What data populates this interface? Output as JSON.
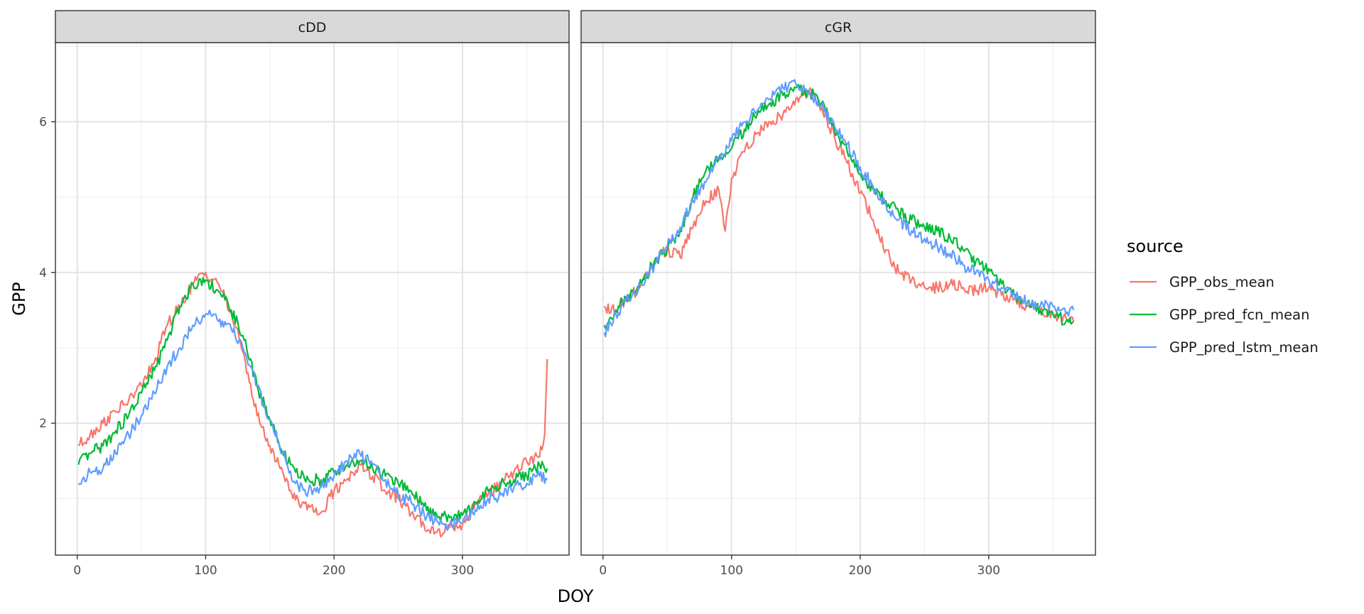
{
  "chart_data": {
    "type": "line",
    "xlabel": "DOY",
    "ylabel": "GPP",
    "x_breaks": [
      0,
      100,
      200,
      300
    ],
    "y_breaks": [
      2,
      4,
      6
    ],
    "xlim": [
      -17,
      383
    ],
    "ylim": [
      0.25,
      7.05
    ],
    "grid": true,
    "legend": {
      "title": "source",
      "position": "right",
      "entries": [
        "GPP_obs_mean",
        "GPP_pred_fcn_mean",
        "GPP_pred_lstm_mean"
      ]
    },
    "series_colors": {
      "GPP_obs_mean": "#F8766D",
      "GPP_pred_fcn_mean": "#00BA38",
      "GPP_pred_lstm_mean": "#619CFF"
    },
    "panels": [
      {
        "strip": "cDD",
        "series": [
          {
            "name": "GPP_obs_mean",
            "points": [
              [
                1,
                1.7
              ],
              [
                10,
                1.85
              ],
              [
                20,
                2.0
              ],
              [
                30,
                2.15
              ],
              [
                40,
                2.3
              ],
              [
                50,
                2.5
              ],
              [
                60,
                2.8
              ],
              [
                70,
                3.3
              ],
              [
                80,
                3.55
              ],
              [
                90,
                3.85
              ],
              [
                100,
                4.0
              ],
              [
                110,
                3.85
              ],
              [
                120,
                3.45
              ],
              [
                130,
                2.9
              ],
              [
                140,
                2.1
              ],
              [
                150,
                1.7
              ],
              [
                160,
                1.35
              ],
              [
                170,
                0.98
              ],
              [
                180,
                0.92
              ],
              [
                190,
                0.82
              ],
              [
                200,
                1.1
              ],
              [
                210,
                1.25
              ],
              [
                220,
                1.45
              ],
              [
                230,
                1.3
              ],
              [
                240,
                1.1
              ],
              [
                250,
                1.0
              ],
              [
                260,
                0.8
              ],
              [
                270,
                0.65
              ],
              [
                280,
                0.55
              ],
              [
                290,
                0.62
              ],
              [
                300,
                0.65
              ],
              [
                310,
                0.95
              ],
              [
                320,
                1.05
              ],
              [
                330,
                1.2
              ],
              [
                340,
                1.35
              ],
              [
                350,
                1.5
              ],
              [
                360,
                1.55
              ],
              [
                364,
                1.85
              ],
              [
                366,
                2.85
              ]
            ]
          },
          {
            "name": "GPP_pred_fcn_mean",
            "points": [
              [
                1,
                1.45
              ],
              [
                10,
                1.6
              ],
              [
                20,
                1.7
              ],
              [
                30,
                1.9
              ],
              [
                40,
                2.1
              ],
              [
                50,
                2.4
              ],
              [
                60,
                2.7
              ],
              [
                70,
                3.1
              ],
              [
                80,
                3.55
              ],
              [
                90,
                3.85
              ],
              [
                100,
                3.9
              ],
              [
                110,
                3.75
              ],
              [
                120,
                3.5
              ],
              [
                130,
                3.1
              ],
              [
                140,
                2.5
              ],
              [
                150,
                2.05
              ],
              [
                160,
                1.6
              ],
              [
                170,
                1.35
              ],
              [
                180,
                1.25
              ],
              [
                190,
                1.25
              ],
              [
                200,
                1.35
              ],
              [
                210,
                1.45
              ],
              [
                220,
                1.5
              ],
              [
                230,
                1.4
              ],
              [
                240,
                1.3
              ],
              [
                250,
                1.2
              ],
              [
                260,
                1.1
              ],
              [
                270,
                0.9
              ],
              [
                280,
                0.78
              ],
              [
                290,
                0.75
              ],
              [
                300,
                0.78
              ],
              [
                310,
                0.95
              ],
              [
                320,
                1.1
              ],
              [
                330,
                1.2
              ],
              [
                340,
                1.25
              ],
              [
                350,
                1.3
              ],
              [
                360,
                1.45
              ],
              [
                366,
                1.4
              ]
            ]
          },
          {
            "name": "GPP_pred_lstm_mean",
            "points": [
              [
                1,
                1.2
              ],
              [
                10,
                1.35
              ],
              [
                20,
                1.4
              ],
              [
                30,
                1.6
              ],
              [
                40,
                1.85
              ],
              [
                50,
                2.1
              ],
              [
                60,
                2.4
              ],
              [
                70,
                2.75
              ],
              [
                80,
                3.0
              ],
              [
                90,
                3.3
              ],
              [
                100,
                3.45
              ],
              [
                110,
                3.35
              ],
              [
                120,
                3.25
              ],
              [
                130,
                2.95
              ],
              [
                140,
                2.5
              ],
              [
                150,
                2.05
              ],
              [
                160,
                1.6
              ],
              [
                170,
                1.2
              ],
              [
                180,
                1.1
              ],
              [
                190,
                1.15
              ],
              [
                200,
                1.3
              ],
              [
                210,
                1.5
              ],
              [
                220,
                1.6
              ],
              [
                230,
                1.45
              ],
              [
                240,
                1.25
              ],
              [
                250,
                1.05
              ],
              [
                260,
                0.95
              ],
              [
                270,
                0.8
              ],
              [
                280,
                0.7
              ],
              [
                290,
                0.65
              ],
              [
                300,
                0.68
              ],
              [
                310,
                0.85
              ],
              [
                320,
                1.0
              ],
              [
                330,
                1.05
              ],
              [
                340,
                1.15
              ],
              [
                350,
                1.2
              ],
              [
                360,
                1.3
              ],
              [
                366,
                1.25
              ]
            ]
          }
        ]
      },
      {
        "strip": "cGR",
        "series": [
          {
            "name": "GPP_obs_mean",
            "points": [
              [
                1,
                3.55
              ],
              [
                10,
                3.5
              ],
              [
                20,
                3.65
              ],
              [
                30,
                3.85
              ],
              [
                40,
                4.15
              ],
              [
                50,
                4.3
              ],
              [
                60,
                4.2
              ],
              [
                70,
                4.6
              ],
              [
                80,
                4.95
              ],
              [
                90,
                5.1
              ],
              [
                95,
                4.55
              ],
              [
                100,
                5.25
              ],
              [
                110,
                5.6
              ],
              [
                120,
                5.85
              ],
              [
                130,
                6.0
              ],
              [
                140,
                6.1
              ],
              [
                150,
                6.3
              ],
              [
                160,
                6.4
              ],
              [
                170,
                6.2
              ],
              [
                180,
                5.8
              ],
              [
                190,
                5.45
              ],
              [
                200,
                5.05
              ],
              [
                210,
                4.7
              ],
              [
                220,
                4.3
              ],
              [
                230,
                4.0
              ],
              [
                240,
                3.9
              ],
              [
                250,
                3.8
              ],
              [
                260,
                3.8
              ],
              [
                270,
                3.85
              ],
              [
                280,
                3.8
              ],
              [
                290,
                3.75
              ],
              [
                300,
                3.8
              ],
              [
                310,
                3.7
              ],
              [
                320,
                3.65
              ],
              [
                330,
                3.55
              ],
              [
                340,
                3.5
              ],
              [
                350,
                3.45
              ],
              [
                360,
                3.4
              ],
              [
                366,
                3.35
              ]
            ]
          },
          {
            "name": "GPP_pred_fcn_mean",
            "points": [
              [
                1,
                3.3
              ],
              [
                10,
                3.5
              ],
              [
                20,
                3.7
              ],
              [
                30,
                3.85
              ],
              [
                40,
                4.15
              ],
              [
                50,
                4.3
              ],
              [
                60,
                4.55
              ],
              [
                70,
                5.0
              ],
              [
                80,
                5.35
              ],
              [
                90,
                5.5
              ],
              [
                100,
                5.65
              ],
              [
                110,
                5.9
              ],
              [
                120,
                6.1
              ],
              [
                130,
                6.25
              ],
              [
                140,
                6.35
              ],
              [
                150,
                6.45
              ],
              [
                160,
                6.4
              ],
              [
                170,
                6.25
              ],
              [
                180,
                5.9
              ],
              [
                190,
                5.6
              ],
              [
                200,
                5.3
              ],
              [
                210,
                5.1
              ],
              [
                220,
                4.95
              ],
              [
                230,
                4.8
              ],
              [
                240,
                4.7
              ],
              [
                250,
                4.6
              ],
              [
                260,
                4.55
              ],
              [
                270,
                4.45
              ],
              [
                280,
                4.3
              ],
              [
                290,
                4.15
              ],
              [
                300,
                4.05
              ],
              [
                310,
                3.85
              ],
              [
                320,
                3.7
              ],
              [
                330,
                3.6
              ],
              [
                340,
                3.5
              ],
              [
                350,
                3.45
              ],
              [
                360,
                3.35
              ],
              [
                366,
                3.35
              ]
            ]
          },
          {
            "name": "GPP_pred_lstm_mean",
            "points": [
              [
                1,
                3.2
              ],
              [
                10,
                3.45
              ],
              [
                20,
                3.65
              ],
              [
                30,
                3.85
              ],
              [
                40,
                4.1
              ],
              [
                50,
                4.35
              ],
              [
                60,
                4.6
              ],
              [
                70,
                4.95
              ],
              [
                80,
                5.2
              ],
              [
                90,
                5.5
              ],
              [
                100,
                5.75
              ],
              [
                110,
                6.0
              ],
              [
                120,
                6.15
              ],
              [
                130,
                6.3
              ],
              [
                140,
                6.45
              ],
              [
                150,
                6.5
              ],
              [
                160,
                6.4
              ],
              [
                170,
                6.2
              ],
              [
                180,
                5.95
              ],
              [
                190,
                5.7
              ],
              [
                200,
                5.4
              ],
              [
                210,
                5.15
              ],
              [
                220,
                4.9
              ],
              [
                230,
                4.7
              ],
              [
                240,
                4.55
              ],
              [
                250,
                4.45
              ],
              [
                260,
                4.35
              ],
              [
                270,
                4.25
              ],
              [
                280,
                4.1
              ],
              [
                290,
                4.0
              ],
              [
                300,
                3.9
              ],
              [
                310,
                3.8
              ],
              [
                320,
                3.7
              ],
              [
                330,
                3.6
              ],
              [
                340,
                3.55
              ],
              [
                350,
                3.55
              ],
              [
                360,
                3.45
              ],
              [
                366,
                3.5
              ]
            ]
          }
        ]
      }
    ]
  }
}
